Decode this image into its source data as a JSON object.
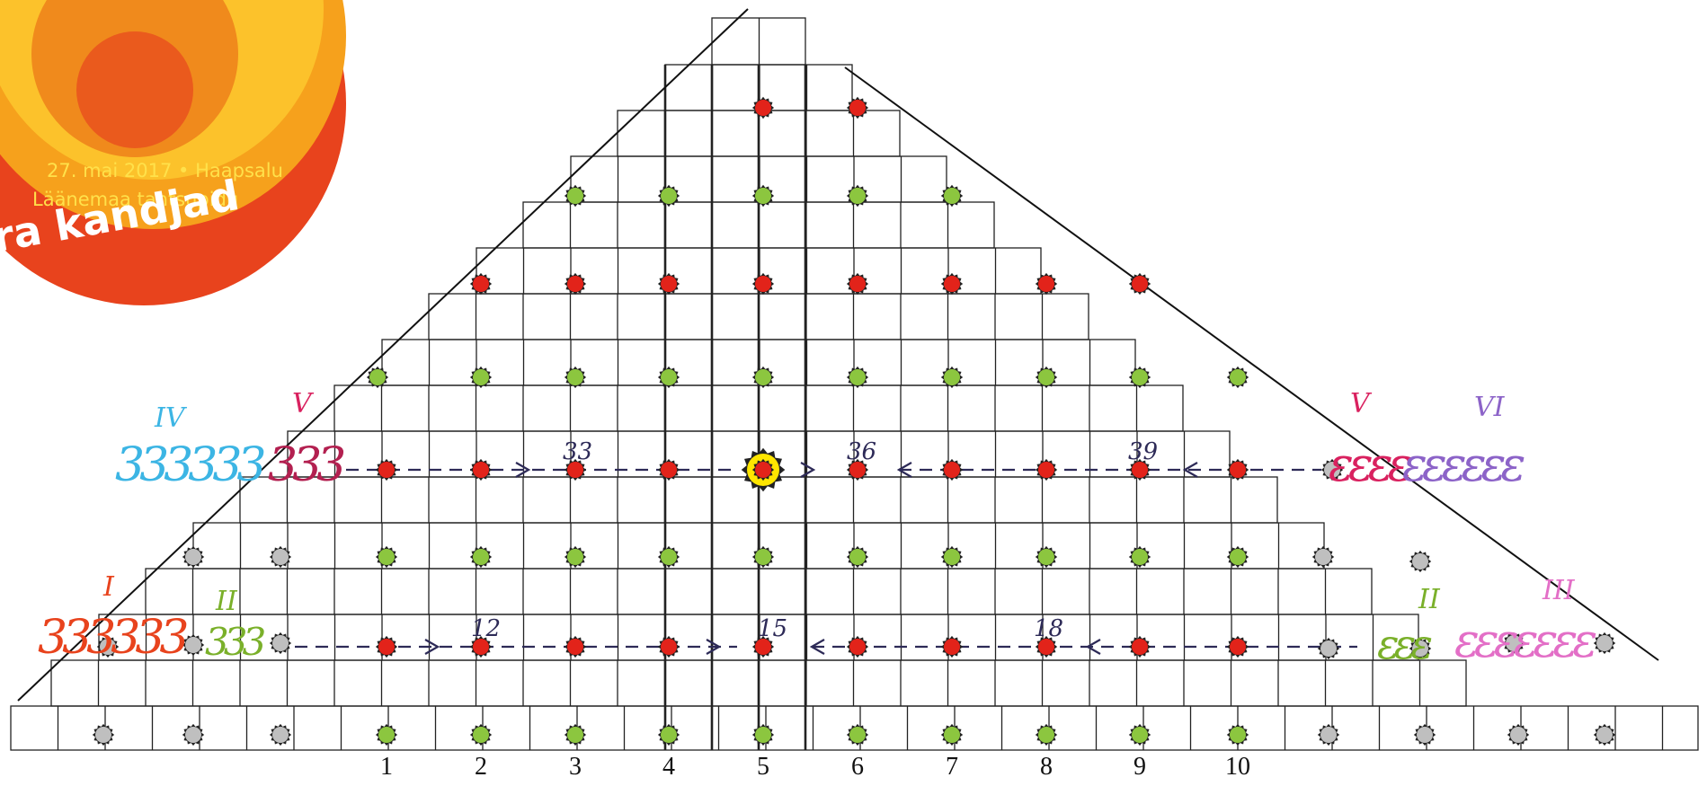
{
  "logo": {
    "date": "27. mai 2017 • Haapsalu",
    "event": "Läänemaa tantsupidu",
    "slogan": "ra kandjad"
  },
  "columns": [
    "1",
    "2",
    "3",
    "4",
    "5",
    "6",
    "7",
    "8",
    "9",
    "10"
  ],
  "dancer_numbers": {
    "row1": [
      "33",
      "36",
      "39"
    ],
    "row2": [
      "12",
      "15",
      "18"
    ]
  },
  "groups": {
    "g1": {
      "roman": "I",
      "marks": "333333"
    },
    "g2": {
      "roman": "II",
      "marks": "333"
    },
    "g3": {
      "roman": "III",
      "marks": "εεεεεεε"
    },
    "g4": {
      "roman": "IV",
      "marks": "333333"
    },
    "g5": {
      "roman": "V",
      "marks": "333"
    },
    "g6": {
      "roman": "V",
      "marks": "εεεε"
    },
    "g7": {
      "roman": "VI",
      "marks": "εεεεεε"
    },
    "g8": {
      "roman": "II",
      "marks": "εεε"
    }
  },
  "colors": {
    "logo_outer": "#e8431d",
    "logo_ring": "#f6a11c",
    "red_dot": "#e2231a",
    "green_dot": "#8cc63f",
    "grey_dot": "#bfbfbf",
    "star": "#ffe600",
    "arrow": "#2d2a57"
  }
}
